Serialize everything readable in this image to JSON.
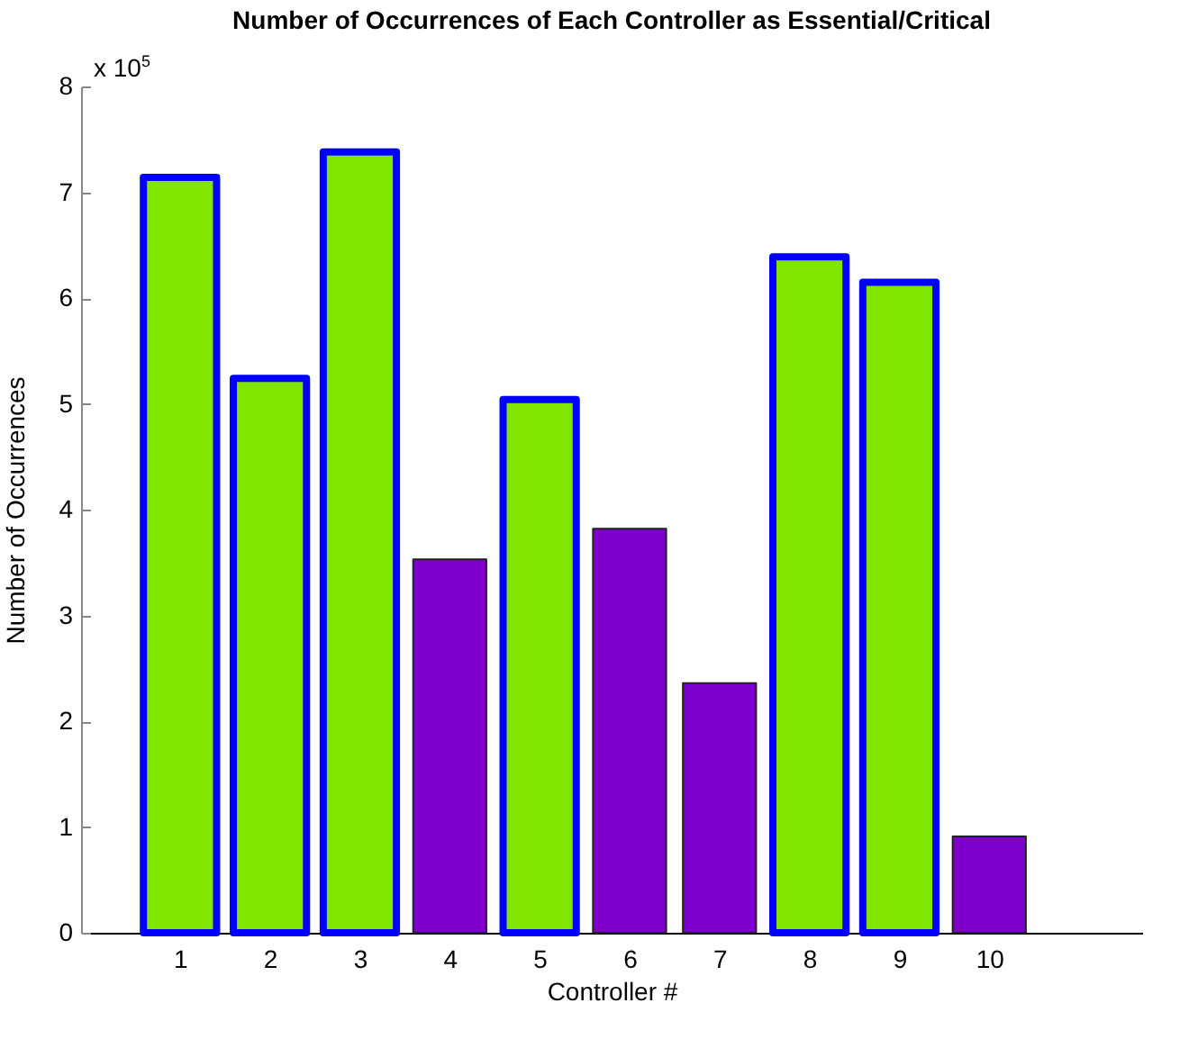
{
  "chart_data": {
    "type": "bar",
    "title": "Number of Occurrences of Each Controller as Essential/Critical",
    "xlabel": "Controller #",
    "ylabel": "Number of Occurrences",
    "x": [
      1,
      2,
      3,
      4,
      5,
      6,
      7,
      8,
      9,
      10
    ],
    "series": [
      {
        "color": "#80e500",
        "values": [
          7.14,
          5.24,
          7.38,
          null,
          5.04,
          null,
          null,
          6.39,
          6.15,
          null
        ]
      },
      {
        "color": "#7f00cc",
        "values": [
          null,
          null,
          null,
          3.53,
          null,
          3.82,
          2.36,
          null,
          null,
          0.91
        ]
      }
    ],
    "xlim": [
      0,
      11.6
    ],
    "xticks": [
      1,
      2,
      3,
      4,
      5,
      6,
      7,
      8,
      9,
      10
    ],
    "ylim": [
      0,
      8
    ],
    "yticks": [
      0,
      1,
      2,
      3,
      4,
      5,
      6,
      7,
      8
    ],
    "annotations": [
      "x 10$^{5}$"
    ],
    "grid": false
  }
}
